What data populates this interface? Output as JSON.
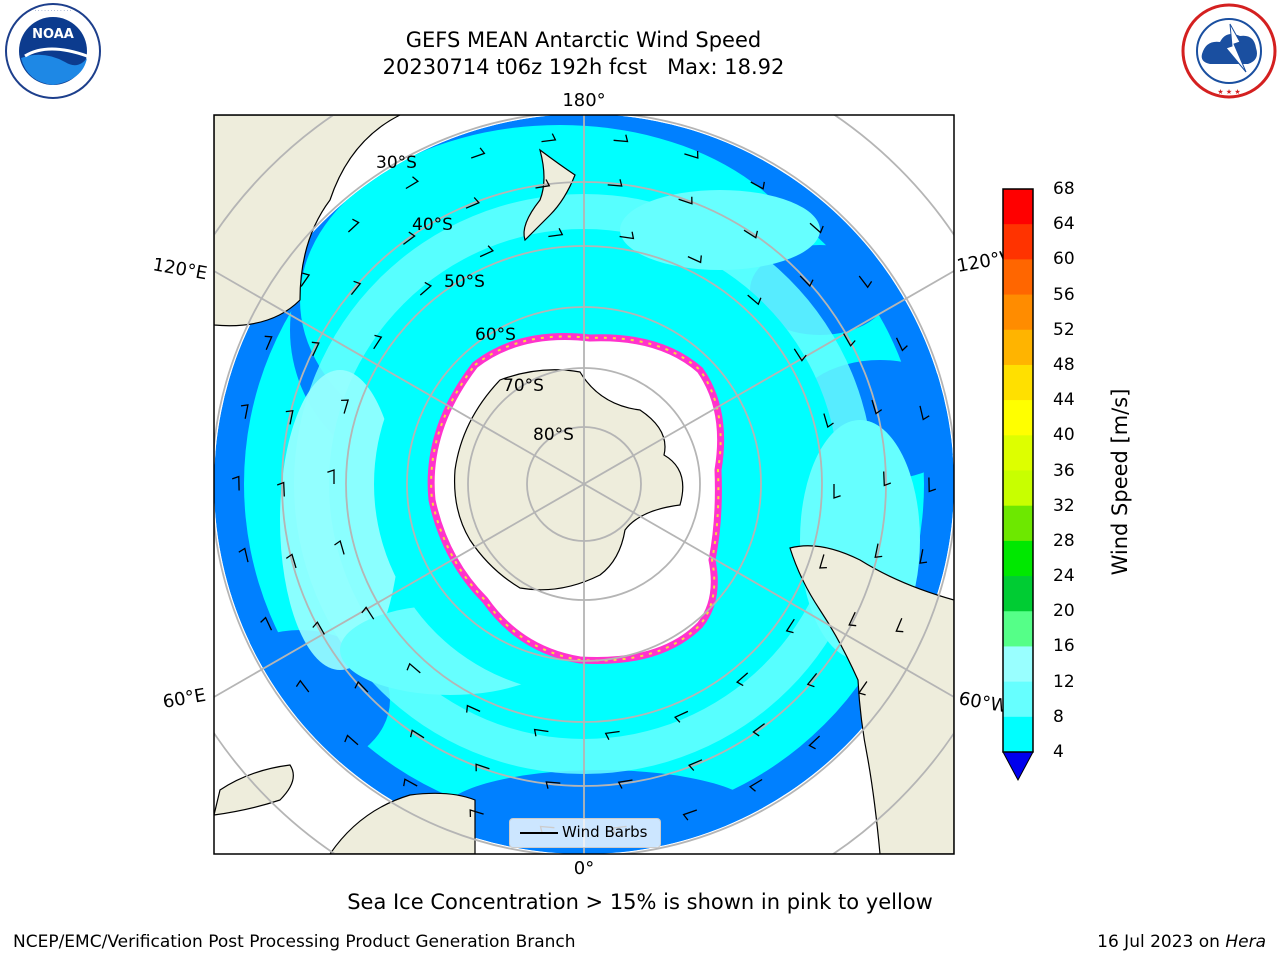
{
  "title": {
    "line1": "GEFS MEAN Antarctic Wind Speed",
    "line2": "20230714 t06z 192h fcst   Max: 18.92"
  },
  "logos": {
    "left": {
      "name": "noaa-logo",
      "text": "NOAA",
      "ring_text": "NATIONAL OCEANIC AND ATMOSPHERIC ADMINISTRATION · U.S. DEPARTMENT OF COMMERCE"
    },
    "right": {
      "name": "nws-logo",
      "ring_text": "NATIONAL WEATHER SERVICE"
    }
  },
  "map": {
    "projection": "south-polar-stereographic",
    "longitude_labels": {
      "top": "180°",
      "bottom": "0°",
      "upper_left": "120°E",
      "upper_right": "120°W",
      "lower_left": "60°E",
      "lower_right": "60°W"
    },
    "latitude_labels": [
      "30°S",
      "40°S",
      "50°S",
      "60°S",
      "70°S",
      "80°S"
    ],
    "colors": {
      "land": "#eeeddc",
      "sea_ice": "#ffffff",
      "ice_edge_pink": "#ff33cc",
      "ice_edge_yellow": "#f6dd3c",
      "wind_4_8": "#0080ff",
      "wind_8_12": "#00ffff",
      "wind_12_16": "#66ffff",
      "wind_16_20": "#99ffff",
      "graticule": "#b5b5b5"
    }
  },
  "legend": {
    "label": "Wind Barbs"
  },
  "colorbar": {
    "label": "Wind Speed [m/s]",
    "ticks": [
      "68",
      "64",
      "60",
      "56",
      "52",
      "48",
      "44",
      "40",
      "36",
      "32",
      "28",
      "24",
      "20",
      "16",
      "12",
      "8",
      "4"
    ],
    "colors": [
      "#ff0000",
      "#ff3300",
      "#ff6600",
      "#ff8c00",
      "#ffb400",
      "#ffe000",
      "#ffff00",
      "#ddff00",
      "#c8ff00",
      "#6de800",
      "#00e800",
      "#00cc33",
      "#55ff88",
      "#99ffff",
      "#66ffff",
      "#00ffff",
      "#0080ff"
    ],
    "extend_color": "#0000ee"
  },
  "footer": {
    "note": "Sea Ice Concentration > 15% is shown in pink to yellow",
    "credit": "NCEP/EMC/Verification Post Processing Product Generation Branch",
    "date": "16 Jul 2023 on ",
    "machine": "Hera"
  }
}
